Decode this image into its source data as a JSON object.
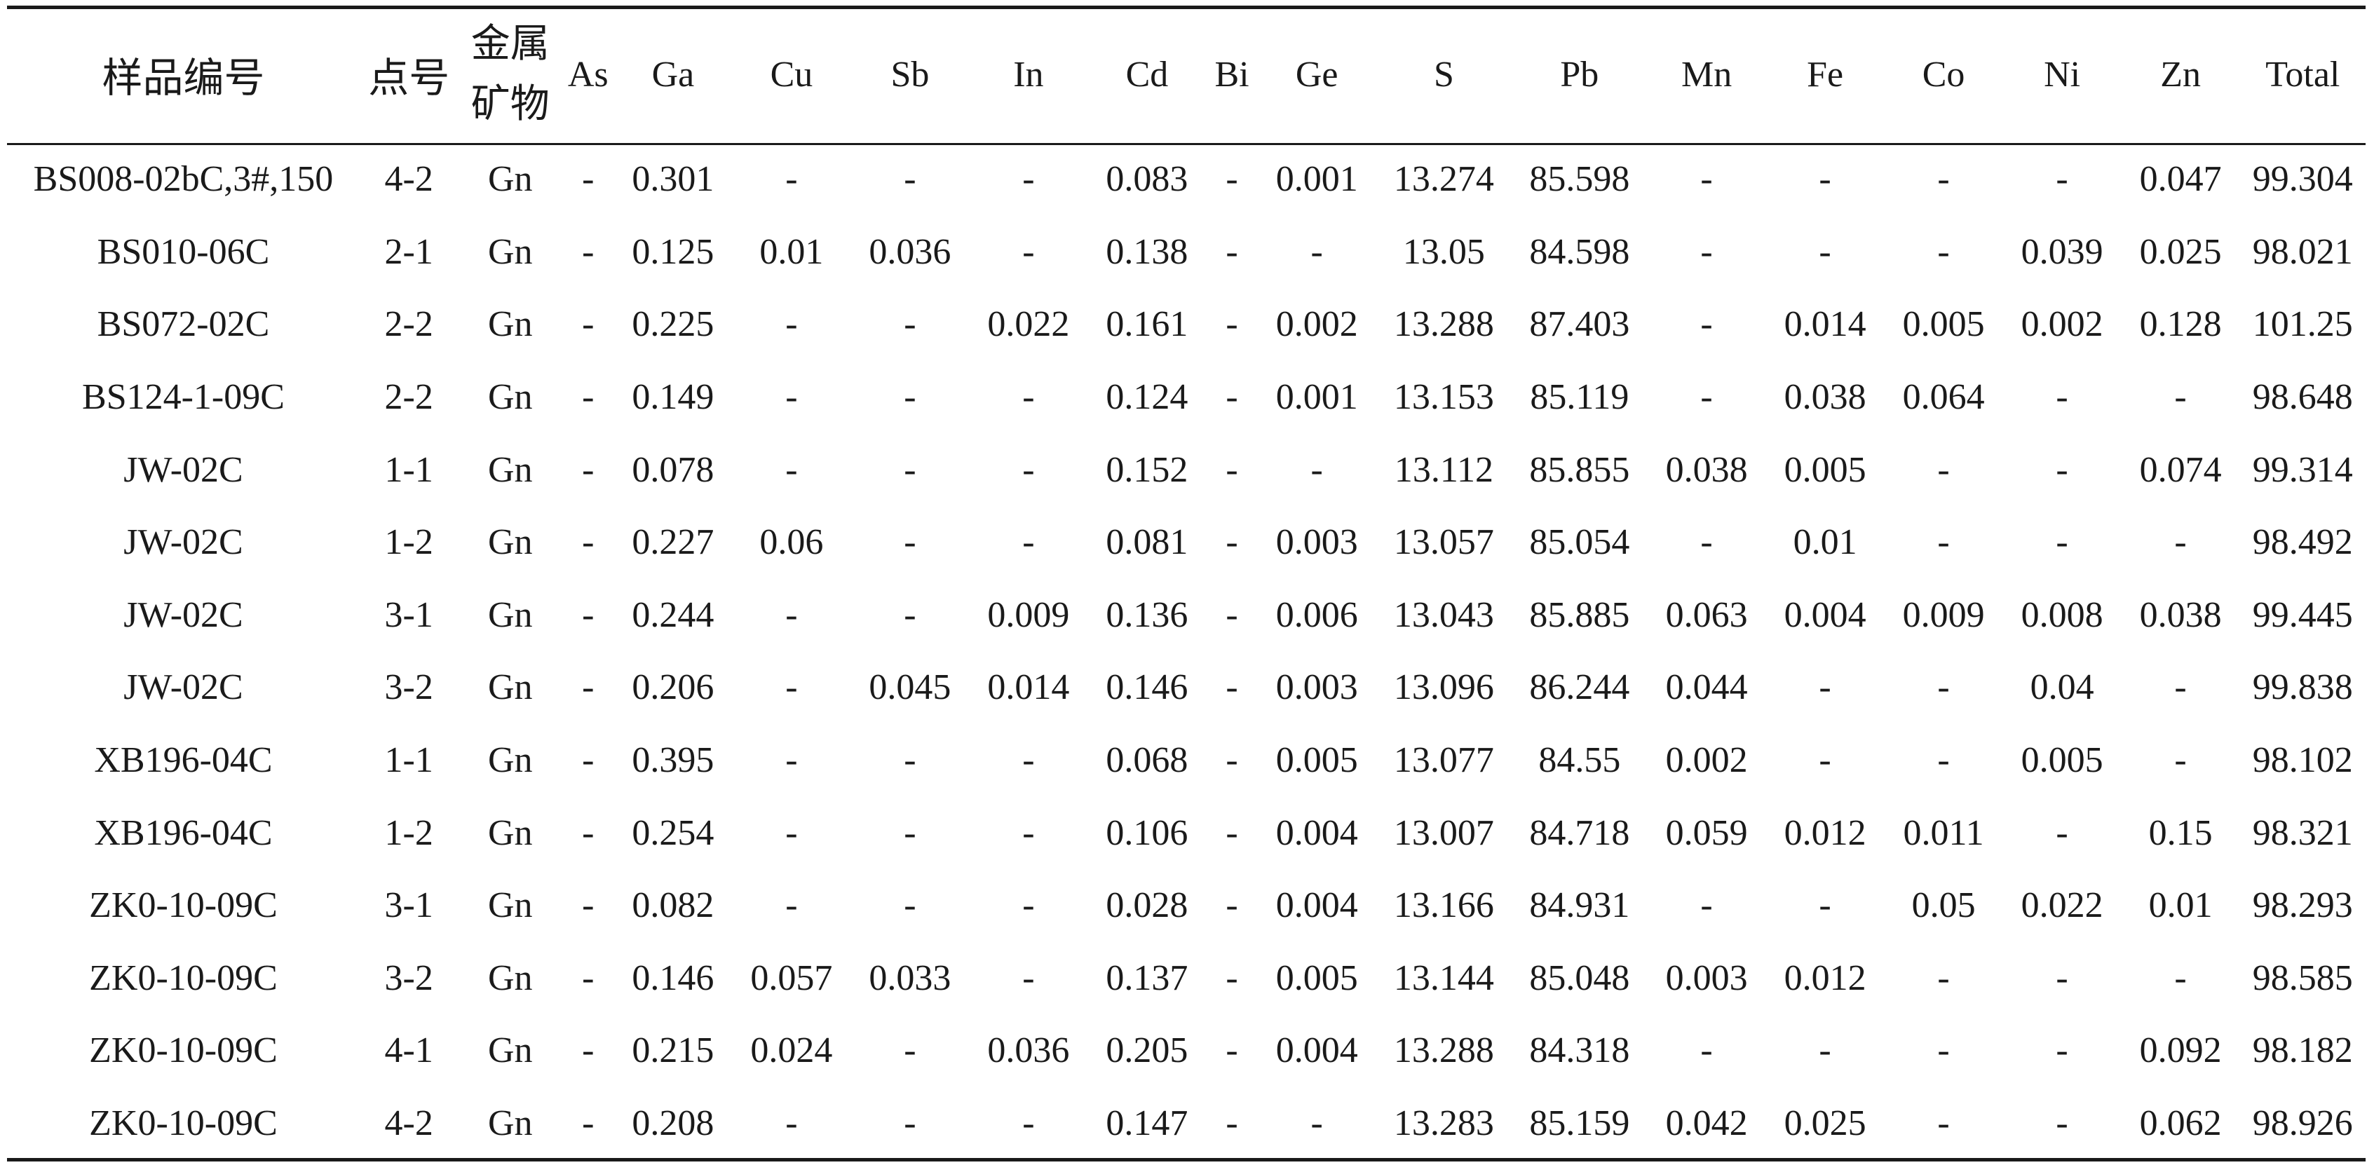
{
  "table": {
    "headers": [
      "样品编号",
      "点号",
      "金属矿物",
      "As",
      "Ga",
      "Cu",
      "Sb",
      "In",
      "Cd",
      "Bi",
      "Ge",
      "S",
      "Pb",
      "Mn",
      "Fe",
      "Co",
      "Ni",
      "Zn",
      "Total"
    ],
    "rows": [
      [
        "BS008-02bC,3#,150",
        "4-2",
        "Gn",
        "-",
        "0.301",
        "-",
        "-",
        "-",
        "0.083",
        "-",
        "0.001",
        "13.274",
        "85.598",
        "-",
        "-",
        "-",
        "-",
        "0.047",
        "99.304"
      ],
      [
        "BS010-06C",
        "2-1",
        "Gn",
        "-",
        "0.125",
        "0.01",
        "0.036",
        "-",
        "0.138",
        "-",
        "-",
        "13.05",
        "84.598",
        "-",
        "-",
        "-",
        "0.039",
        "0.025",
        "98.021"
      ],
      [
        "BS072-02C",
        "2-2",
        "Gn",
        "-",
        "0.225",
        "-",
        "-",
        "0.022",
        "0.161",
        "-",
        "0.002",
        "13.288",
        "87.403",
        "-",
        "0.014",
        "0.005",
        "0.002",
        "0.128",
        "101.25"
      ],
      [
        "BS124-1-09C",
        "2-2",
        "Gn",
        "-",
        "0.149",
        "-",
        "-",
        "-",
        "0.124",
        "-",
        "0.001",
        "13.153",
        "85.119",
        "-",
        "0.038",
        "0.064",
        "-",
        "-",
        "98.648"
      ],
      [
        "JW-02C",
        "1-1",
        "Gn",
        "-",
        "0.078",
        "-",
        "-",
        "-",
        "0.152",
        "-",
        "-",
        "13.112",
        "85.855",
        "0.038",
        "0.005",
        "-",
        "-",
        "0.074",
        "99.314"
      ],
      [
        "JW-02C",
        "1-2",
        "Gn",
        "-",
        "0.227",
        "0.06",
        "-",
        "-",
        "0.081",
        "-",
        "0.003",
        "13.057",
        "85.054",
        "-",
        "0.01",
        "-",
        "-",
        "-",
        "98.492"
      ],
      [
        "JW-02C",
        "3-1",
        "Gn",
        "-",
        "0.244",
        "-",
        "-",
        "0.009",
        "0.136",
        "-",
        "0.006",
        "13.043",
        "85.885",
        "0.063",
        "0.004",
        "0.009",
        "0.008",
        "0.038",
        "99.445"
      ],
      [
        "JW-02C",
        "3-2",
        "Gn",
        "-",
        "0.206",
        "-",
        "0.045",
        "0.014",
        "0.146",
        "-",
        "0.003",
        "13.096",
        "86.244",
        "0.044",
        "-",
        "-",
        "0.04",
        "-",
        "99.838"
      ],
      [
        "XB196-04C",
        "1-1",
        "Gn",
        "-",
        "0.395",
        "-",
        "-",
        "-",
        "0.068",
        "-",
        "0.005",
        "13.077",
        "84.55",
        "0.002",
        "-",
        "-",
        "0.005",
        "-",
        "98.102"
      ],
      [
        "XB196-04C",
        "1-2",
        "Gn",
        "-",
        "0.254",
        "-",
        "-",
        "-",
        "0.106",
        "-",
        "0.004",
        "13.007",
        "84.718",
        "0.059",
        "0.012",
        "0.011",
        "-",
        "0.15",
        "98.321"
      ],
      [
        "ZK0-10-09C",
        "3-1",
        "Gn",
        "-",
        "0.082",
        "-",
        "-",
        "-",
        "0.028",
        "-",
        "0.004",
        "13.166",
        "84.931",
        "-",
        "-",
        "0.05",
        "0.022",
        "0.01",
        "98.293"
      ],
      [
        "ZK0-10-09C",
        "3-2",
        "Gn",
        "-",
        "0.146",
        "0.057",
        "0.033",
        "-",
        "0.137",
        "-",
        "0.005",
        "13.144",
        "85.048",
        "0.003",
        "0.012",
        "-",
        "-",
        "-",
        "98.585"
      ],
      [
        "ZK0-10-09C",
        "4-1",
        "Gn",
        "-",
        "0.215",
        "0.024",
        "-",
        "0.036",
        "0.205",
        "-",
        "0.004",
        "13.288",
        "84.318",
        "-",
        "-",
        "-",
        "-",
        "0.092",
        "98.182"
      ],
      [
        "ZK0-10-09C",
        "4-2",
        "Gn",
        "-",
        "0.208",
        "-",
        "-",
        "-",
        "0.147",
        "-",
        "-",
        "13.283",
        "85.159",
        "0.042",
        "0.025",
        "-",
        "-",
        "0.062",
        "98.926"
      ]
    ]
  }
}
